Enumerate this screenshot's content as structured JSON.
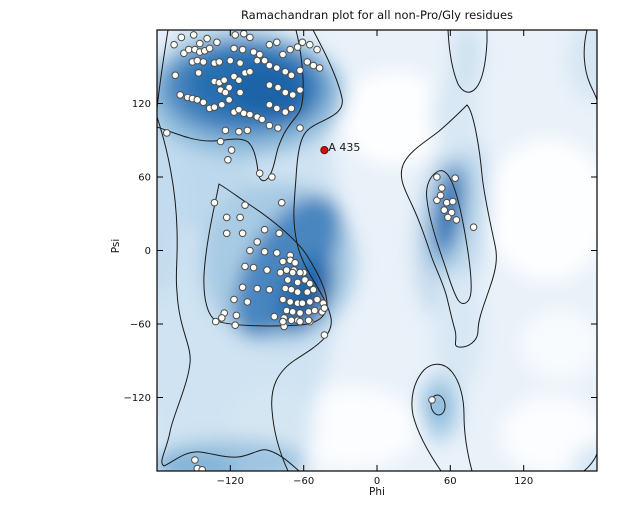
{
  "figure": {
    "title": "Ramachandran plot for all non-Pro/Gly residues",
    "xlabel": "Phi",
    "ylabel": "Psi"
  },
  "chart_data": {
    "type": "scatter",
    "title": "Ramachandran plot for all non-Pro/Gly residues",
    "xlabel": "Phi",
    "ylabel": "Psi",
    "xlim": [
      -180,
      180
    ],
    "ylim": [
      -180,
      180
    ],
    "grid": false,
    "legend": "none",
    "xticks": {
      "values": [
        -120,
        -60,
        0,
        60,
        120
      ],
      "labels": [
        "−120",
        "−60",
        "0",
        "60",
        "120"
      ]
    },
    "yticks": {
      "values": [
        -120,
        -60,
        0,
        60,
        120
      ],
      "labels": [
        "−120",
        "−60",
        "0",
        "60",
        "120"
      ]
    },
    "background": "kernel-density estimate shown as blue shading with favored and allowed contour lines",
    "series": [
      {
        "name": "non-Pro/Gly residues",
        "marker": "circle",
        "fill": "#fffef8",
        "edge": "#4d4d4d",
        "points": [
          [
            -160,
            174
          ],
          [
            -150,
            176
          ],
          [
            -139,
            173
          ],
          [
            -116,
            176
          ],
          [
            -109,
            177
          ],
          [
            -104,
            174
          ],
          [
            -166,
            168
          ],
          [
            -158,
            161
          ],
          [
            -154,
            164
          ],
          [
            -149,
            164
          ],
          [
            -145,
            162
          ],
          [
            -141,
            163
          ],
          [
            -137,
            165
          ],
          [
            -131,
            170
          ],
          [
            -145,
            169
          ],
          [
            -117,
            165
          ],
          [
            -110,
            164
          ],
          [
            -101,
            162
          ],
          [
            -96,
            160
          ],
          [
            -151,
            154
          ],
          [
            -147,
            155
          ],
          [
            -142,
            154
          ],
          [
            -133,
            153
          ],
          [
            -129,
            154
          ],
          [
            -120,
            155
          ],
          [
            -112,
            153
          ],
          [
            -108,
            145
          ],
          [
            -104,
            146
          ],
          [
            -98,
            155
          ],
          [
            -92,
            155
          ],
          [
            -165,
            143
          ],
          [
            -146,
            145
          ],
          [
            -133,
            138
          ],
          [
            -129,
            137
          ],
          [
            -125,
            139
          ],
          [
            -121,
            133
          ],
          [
            -117,
            142
          ],
          [
            -113,
            139
          ],
          [
            -128,
            131
          ],
          [
            -124,
            129
          ],
          [
            -112,
            129
          ],
          [
            -161,
            127
          ],
          [
            -155,
            125
          ],
          [
            -151,
            124
          ],
          [
            -147,
            123
          ],
          [
            -142,
            121
          ],
          [
            -137,
            116
          ],
          [
            -133,
            117
          ],
          [
            -127,
            119
          ],
          [
            -121,
            123
          ],
          [
            -117,
            113
          ],
          [
            -113,
            115
          ],
          [
            -109,
            112
          ],
          [
            -104,
            111
          ],
          [
            -98,
            109
          ],
          [
            -94,
            107
          ],
          [
            -124,
            98
          ],
          [
            -113,
            97
          ],
          [
            -106,
            98
          ],
          [
            -172,
            96
          ],
          [
            -88,
            168
          ],
          [
            -82,
            170
          ],
          [
            -77,
            160
          ],
          [
            -71,
            164
          ],
          [
            -65,
            166
          ],
          [
            -61,
            170
          ],
          [
            -55,
            168
          ],
          [
            -49,
            164
          ],
          [
            -88,
            151
          ],
          [
            -82,
            149
          ],
          [
            -75,
            146
          ],
          [
            -70,
            143
          ],
          [
            -63,
            147
          ],
          [
            -57,
            154
          ],
          [
            -52,
            151
          ],
          [
            -47,
            149
          ],
          [
            -88,
            135
          ],
          [
            -81,
            133
          ],
          [
            -75,
            129
          ],
          [
            -69,
            127
          ],
          [
            -63,
            131
          ],
          [
            -88,
            119
          ],
          [
            -82,
            116
          ],
          [
            -75,
            113
          ],
          [
            -70,
            116
          ],
          [
            -88,
            102
          ],
          [
            -81,
            100
          ],
          [
            -63,
            100
          ],
          [
            -128,
            89
          ],
          [
            -119,
            82
          ],
          [
            -122,
            74
          ],
          [
            -96,
            63
          ],
          [
            -86,
            60
          ],
          [
            -133,
            39
          ],
          [
            -108,
            37
          ],
          [
            -78,
            39
          ],
          [
            -123,
            27
          ],
          [
            -112,
            27
          ],
          [
            -123,
            14
          ],
          [
            -110,
            14
          ],
          [
            -98,
            7
          ],
          [
            -92,
            17
          ],
          [
            -80,
            14
          ],
          [
            -104,
            0
          ],
          [
            -92,
            -1
          ],
          [
            -82,
            -2
          ],
          [
            -71,
            -4
          ],
          [
            -108,
            -13
          ],
          [
            -101,
            -14
          ],
          [
            -90,
            -16
          ],
          [
            -79,
            -18
          ],
          [
            -68,
            -16
          ],
          [
            -60,
            -18
          ],
          [
            -110,
            -30
          ],
          [
            -98,
            -31
          ],
          [
            -88,
            -32
          ],
          [
            -117,
            -40
          ],
          [
            -106,
            -42
          ],
          [
            -125,
            -51
          ],
          [
            -115,
            -53
          ],
          [
            -84,
            -54
          ],
          [
            -76,
            -55
          ],
          [
            -65,
            -57
          ],
          [
            -55,
            -58
          ],
          [
            -132,
            -58
          ],
          [
            -127,
            -55
          ],
          [
            -116,
            -61
          ],
          [
            -76,
            -62
          ],
          [
            -43,
            -69
          ],
          [
            -77,
            -9
          ],
          [
            -71,
            -8
          ],
          [
            -67,
            -10
          ],
          [
            -74,
            -16
          ],
          [
            -69,
            -18
          ],
          [
            -63,
            -18
          ],
          [
            -73,
            -24
          ],
          [
            -65,
            -26
          ],
          [
            -59,
            -24
          ],
          [
            -55,
            -27
          ],
          [
            -75,
            -31
          ],
          [
            -70,
            -32
          ],
          [
            -65,
            -34
          ],
          [
            -57,
            -34
          ],
          [
            -52,
            -32
          ],
          [
            -77,
            -40
          ],
          [
            -71,
            -42
          ],
          [
            -65,
            -43
          ],
          [
            -61,
            -43
          ],
          [
            -55,
            -42
          ],
          [
            -49,
            -40
          ],
          [
            -44,
            -43
          ],
          [
            -74,
            -49
          ],
          [
            -69,
            -50
          ],
          [
            -63,
            -51
          ],
          [
            -56,
            -50
          ],
          [
            -51,
            -49
          ],
          [
            -45,
            -50
          ],
          [
            -70,
            -57
          ],
          [
            -63,
            -58
          ],
          [
            -56,
            -57
          ],
          [
            -77,
            -58
          ],
          [
            -43,
            -47
          ],
          [
            49,
            60
          ],
          [
            64,
            59
          ],
          [
            53,
            51
          ],
          [
            49,
            41
          ],
          [
            57,
            39
          ],
          [
            62,
            40
          ],
          [
            61,
            31
          ],
          [
            58,
            27
          ],
          [
            65,
            25
          ],
          [
            79,
            19
          ],
          [
            52,
            45
          ],
          [
            55,
            33
          ],
          [
            45,
            -122
          ],
          [
            -149,
            -171
          ],
          [
            -147,
            -178
          ],
          [
            -143,
            -179
          ]
        ]
      }
    ],
    "highlight_point": {
      "label": "A 435",
      "phi": -43,
      "psi": 82,
      "color": "#cc1111"
    }
  },
  "colors": {
    "density_dark": "#2066ab",
    "density_mid": "#4886c0",
    "density_light": "#cfe3f2",
    "canvas": "#e9f1f9",
    "contour": "#1a1a1a",
    "marker_fill": "#fffef8",
    "marker_edge": "#4d4d4d",
    "highlight": "#cc1111",
    "axis": "#000000"
  }
}
